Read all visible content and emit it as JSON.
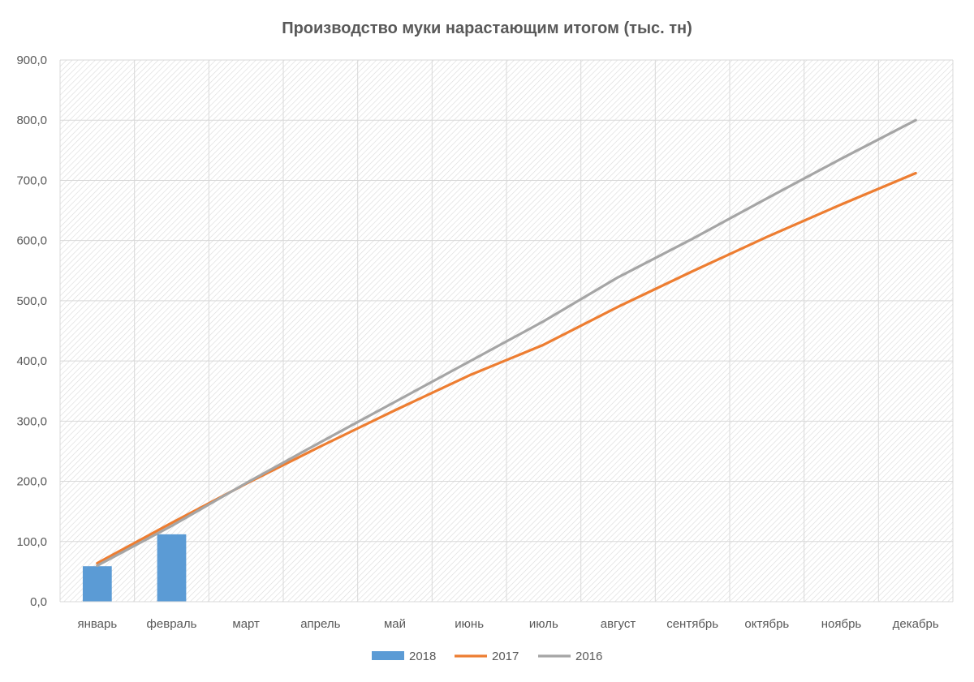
{
  "chart_data": {
    "type": "bar",
    "title": "Производство муки нарастающим итогом (тыс. тн)",
    "xlabel": "",
    "ylabel": "",
    "categories": [
      "январь",
      "февраль",
      "март",
      "апрель",
      "май",
      "июнь",
      "июль",
      "август",
      "сентябрь",
      "октябрь",
      "ноябрь",
      "декабрь"
    ],
    "ylim": [
      0,
      900
    ],
    "y_ticks": [
      "0,0",
      "100,0",
      "200,0",
      "300,0",
      "400,0",
      "500,0",
      "600,0",
      "700,0",
      "800,0",
      "900,0"
    ],
    "grid": true,
    "legend_position": "bottom",
    "series": [
      {
        "name": "2018",
        "type": "bar",
        "color": "#5B9BD5",
        "values": [
          59,
          112,
          null,
          null,
          null,
          null,
          null,
          null,
          null,
          null,
          null,
          null
        ]
      },
      {
        "name": "2017",
        "type": "line",
        "color": "#ED7D31",
        "values": [
          64,
          131,
          196,
          258,
          318,
          376,
          427,
          490,
          549,
          606,
          660,
          712
        ]
      },
      {
        "name": "2016",
        "type": "line",
        "color": "#A5A5A5",
        "values": [
          60,
          126,
          197,
          265,
          332,
          399,
          466,
          539,
          603,
          670,
          736,
          800
        ]
      }
    ]
  }
}
